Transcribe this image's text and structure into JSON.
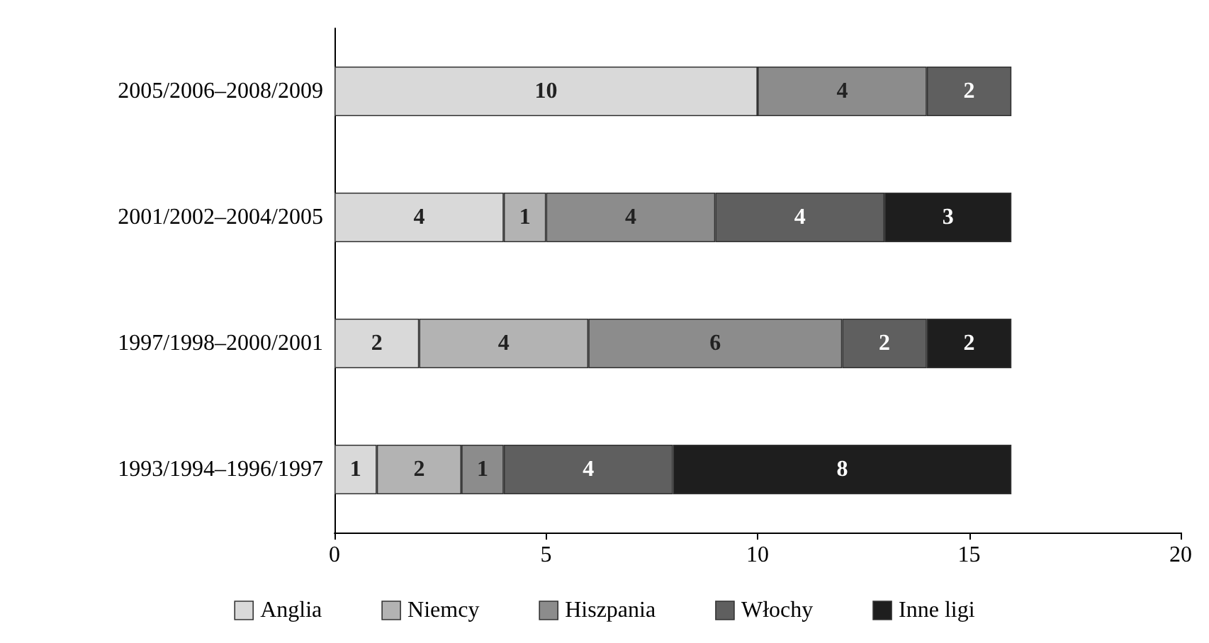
{
  "chart_data": {
    "type": "bar",
    "orientation": "horizontal",
    "stacked": true,
    "data_labels": true,
    "grid": false,
    "legend": "bottom",
    "categories": [
      "2005/2006–2008/2009",
      "2001/2002–2004/2005",
      "1997/1998–2000/2001",
      "1993/1994–1996/1997"
    ],
    "xlim": [
      0,
      20
    ],
    "xticks": [
      0,
      5,
      10,
      15,
      20
    ],
    "series": [
      {
        "name": "Anglia",
        "color": "#d9d9d9",
        "values": [
          10,
          4,
          2,
          1
        ]
      },
      {
        "name": "Niemcy",
        "color": "#b3b3b3",
        "values": [
          null,
          1,
          4,
          2
        ]
      },
      {
        "name": "Hiszpania",
        "color": "#8c8c8c",
        "values": [
          4,
          4,
          6,
          1
        ]
      },
      {
        "name": "Włochy",
        "color": "#5f5f5f",
        "values": [
          2,
          4,
          2,
          4
        ]
      },
      {
        "name": "Inne ligi",
        "color": "#1e1e1e",
        "values": [
          null,
          3,
          2,
          8
        ]
      }
    ]
  }
}
